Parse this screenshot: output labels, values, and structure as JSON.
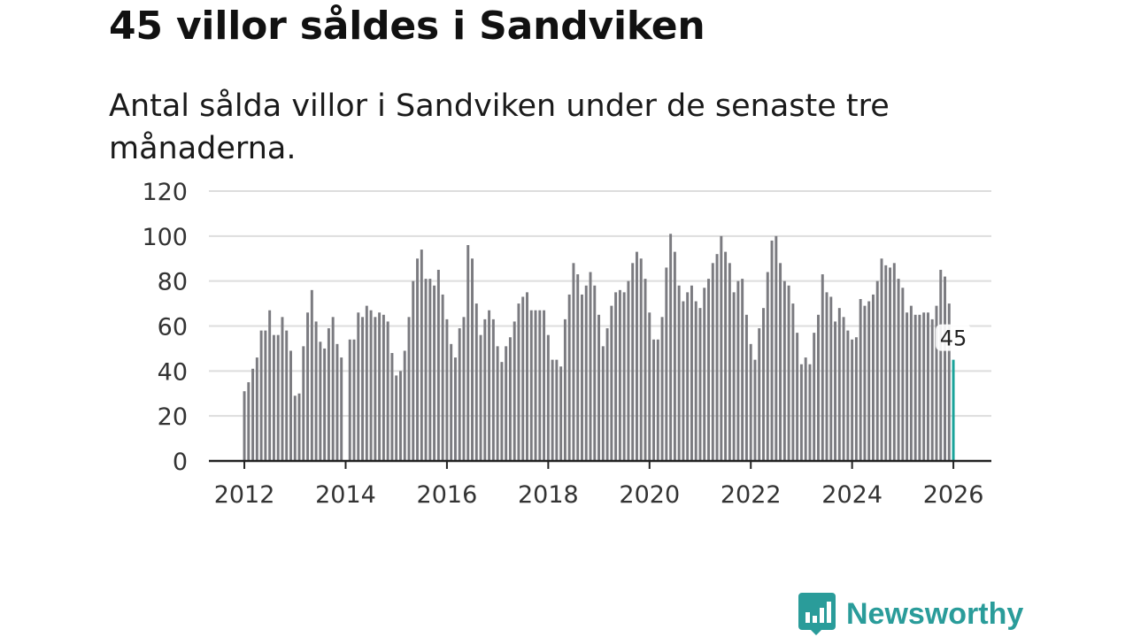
{
  "title": "45 villor såldes i Sandviken",
  "subtitle": "Antal sålda villor i Sandviken under de senaste tre månaderna.",
  "brand": {
    "name": "Newsworthy",
    "icon": "newsworthy-logo-icon",
    "color": "#2a9c9a"
  },
  "chart_data": {
    "type": "bar",
    "title": "Antal sålda villor i Sandviken",
    "xlabel": "",
    "ylabel": "",
    "ylim": [
      0,
      120
    ],
    "yticks": [
      "0",
      "20",
      "40",
      "60",
      "80",
      "100",
      "120"
    ],
    "xlim": [
      2011.3,
      2026.75
    ],
    "xticks": [
      "2012",
      "2014",
      "2016",
      "2018",
      "2020",
      "2022",
      "2024",
      "2026"
    ],
    "start": 2012.0,
    "step": 0.08333,
    "bar_color": "#7b7b80",
    "highlight_color": "#1aa39a",
    "values": [
      31,
      35,
      41,
      46,
      58,
      58,
      67,
      56,
      56,
      64,
      58,
      49,
      29,
      30,
      51,
      66,
      76,
      62,
      53,
      50,
      59,
      64,
      52,
      46,
      0,
      54,
      54,
      66,
      64,
      69,
      67,
      64,
      66,
      65,
      62,
      48,
      38,
      40,
      49,
      64,
      80,
      90,
      94,
      81,
      81,
      78,
      85,
      74,
      63,
      52,
      46,
      59,
      64,
      96,
      90,
      70,
      56,
      63,
      67,
      63,
      51,
      44,
      51,
      55,
      62,
      70,
      73,
      75,
      67,
      67,
      67,
      67,
      56,
      45,
      45,
      42,
      63,
      74,
      88,
      83,
      74,
      78,
      84,
      78,
      65,
      51,
      59,
      69,
      75,
      76,
      75,
      80,
      88,
      93,
      90,
      81,
      66,
      54,
      54,
      64,
      86,
      101,
      93,
      78,
      71,
      75,
      78,
      71,
      68,
      77,
      81,
      88,
      92,
      100,
      93,
      88,
      75,
      80,
      81,
      65,
      52,
      45,
      59,
      68,
      84,
      98,
      100,
      88,
      80,
      78,
      70,
      57,
      43,
      46,
      43,
      57,
      65,
      83,
      75,
      73,
      62,
      68,
      64,
      58,
      54,
      55,
      72,
      69,
      71,
      74,
      80,
      90,
      87,
      86,
      88,
      81,
      77,
      66,
      69,
      65,
      65,
      66,
      66,
      63,
      69,
      85,
      82,
      70,
      45
    ],
    "highlight_label": "45"
  }
}
